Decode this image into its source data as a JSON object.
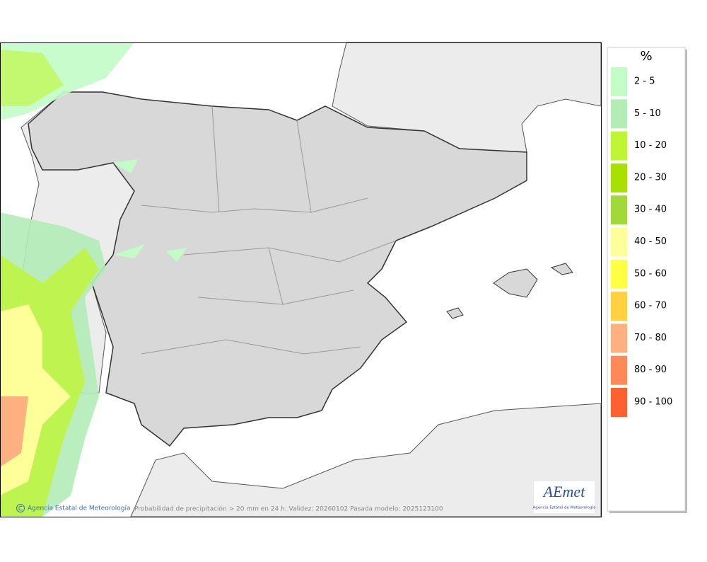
{
  "legend": {
    "title": "%",
    "items": [
      {
        "label": "2 - 5",
        "color": "#c2fcc6"
      },
      {
        "label": "5 - 10",
        "color": "#b4ecb8"
      },
      {
        "label": "10 - 20",
        "color": "#bff534"
      },
      {
        "label": "20 - 30",
        "color": "#a8e000"
      },
      {
        "label": "30 - 40",
        "color": "#a2d83a"
      },
      {
        "label": "40 - 50",
        "color": "#ffff99"
      },
      {
        "label": "50 - 60",
        "color": "#ffff44"
      },
      {
        "label": "60 - 70",
        "color": "#ffd040"
      },
      {
        "label": "70 - 80",
        "color": "#ffb080"
      },
      {
        "label": "80 - 90",
        "color": "#ff8858"
      },
      {
        "label": "90 - 100",
        "color": "#ff6030"
      }
    ]
  },
  "footer": {
    "credit": "Agencia Estatal de Meteorología",
    "caption": "Probabilidad de precipitación > 20 mm en 24 h. Validez: 20260102 Pasada modelo: 2025123100"
  },
  "logo": {
    "name": "AEmet",
    "subtitle": "Agencia Estatal de Meteorología"
  }
}
